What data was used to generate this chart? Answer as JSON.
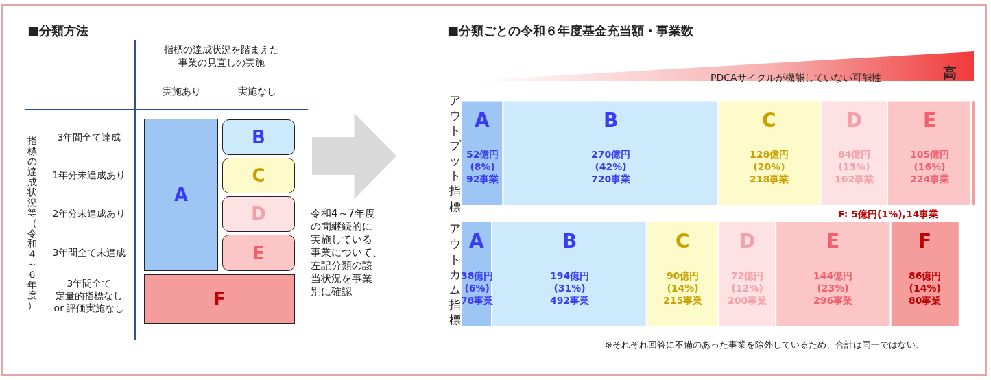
{
  "chart_data": [
    {
      "type": "other",
      "title": "■分類方法",
      "annotations": [
        "指標の達成状況を踏まえた",
        "事業の見直しの実施",
        "実施あり",
        "実施なし",
        "指標の達成状況等（令和４～６年度）",
        "3年間全て達成",
        "1年分未達成あり",
        "2年分未達成あり",
        "3年間全て未達成",
        "3年間全て",
        "定量的指標なし",
        "or 評価実施なし",
        "A",
        "B",
        "C",
        "D",
        "E",
        "F",
        "令和4～7年度",
        "の間継続的に",
        "実施している",
        "事業について、",
        "左記分類の該",
        "当状況を事業",
        "別に確認"
      ]
    },
    {
      "type": "bar",
      "orientation": "horizontal",
      "stacked": true,
      "title": "■分類ごとの令和６年度基金充当額・事業数",
      "categories": [
        "アウトプット指標",
        "アウトカム指標"
      ],
      "series": [
        {
          "name": "A",
          "color": "#9dc6f5",
          "values": [
            52,
            38
          ],
          "value_labels": [
            "52億円\n(8%)\n92事業",
            "38億円\n(6%)\n78事業"
          ]
        },
        {
          "name": "B",
          "color": "#cceafc",
          "values": [
            270,
            194
          ],
          "value_labels": [
            "270億円\n(42%)\n720事業",
            "194億円\n(31%)\n492事業"
          ]
        },
        {
          "name": "C",
          "color": "#fdfbca",
          "values": [
            128,
            90
          ],
          "value_labels": [
            "128億円\n(20%)\n218事業",
            "90億円\n(14%)\n215事業"
          ]
        },
        {
          "name": "D",
          "color": "#fde1e3",
          "values": [
            84,
            72
          ],
          "value_labels": [
            "84億円\n(13%)\n162事業",
            "72億円\n(12%)\n200事業"
          ]
        },
        {
          "name": "E",
          "color": "#fcc6c6",
          "values": [
            105,
            144
          ],
          "value_labels": [
            "105億円\n(16%)\n224事業",
            "144億円\n(23%)\n296事業"
          ]
        },
        {
          "name": "F",
          "color": "#f59c9c",
          "values": [
            5,
            86
          ],
          "value_labels": [
            null,
            "86億円\n(14%)\n80事業"
          ]
        }
      ],
      "annotations": [
        "PDCAサイクルが機能していない可能性",
        "高",
        "F: 5億円(1%),14事業",
        "※それぞれ回答に不備のあった事業を除外しているため、合計は同一ではない。"
      ]
    }
  ]
}
